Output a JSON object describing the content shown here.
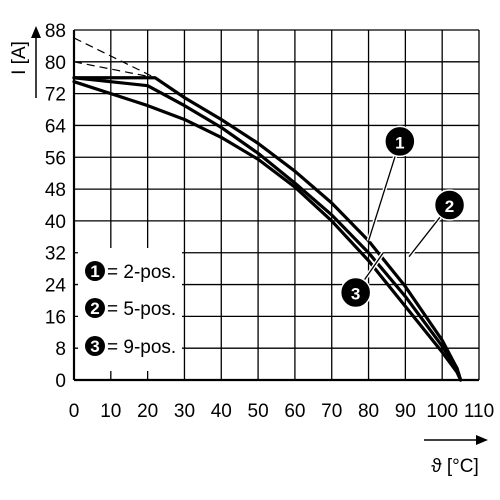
{
  "chart_data": {
    "type": "line",
    "xlabel": "ϑ [°C]",
    "ylabel": "I [A]",
    "xlim": [
      0,
      110
    ],
    "ylim": [
      0,
      88
    ],
    "x_ticks": [
      "0",
      "10",
      "20",
      "30",
      "40",
      "50",
      "60",
      "70",
      "80",
      "90",
      "100",
      "110"
    ],
    "y_ticks": [
      "0",
      "8",
      "16",
      "24",
      "32",
      "40",
      "48",
      "56",
      "64",
      "72",
      "80",
      "88"
    ],
    "grid": true,
    "legend_position": "bottom-left",
    "legend": [
      {
        "id": "1",
        "label": "= 2-pos."
      },
      {
        "id": "2",
        "label": "= 5-pos."
      },
      {
        "id": "3",
        "label": "= 9-pos."
      }
    ],
    "series": [
      {
        "id": "1",
        "x": [
          0,
          22,
          30,
          40,
          50,
          60,
          70,
          80,
          90,
          100,
          104,
          105
        ],
        "y": [
          76,
          76,
          71,
          65.5,
          59.5,
          52.5,
          44.5,
          35,
          23.5,
          10,
          3,
          0
        ]
      },
      {
        "id": "2",
        "x": [
          0,
          20,
          30,
          40,
          50,
          60,
          70,
          80,
          90,
          100,
          104,
          105
        ],
        "y": [
          76,
          74,
          69,
          63.5,
          57,
          49.5,
          41.5,
          32,
          21,
          8.5,
          3,
          0
        ]
      },
      {
        "id": "3",
        "x": [
          0,
          10,
          20,
          30,
          40,
          50,
          60,
          70,
          80,
          90,
          100,
          104,
          105
        ],
        "y": [
          75,
          72,
          69,
          65.5,
          61,
          55.5,
          48.5,
          40,
          30,
          18.5,
          7,
          2,
          0
        ]
      }
    ],
    "extrapolations": [
      {
        "x": [
          0,
          22
        ],
        "y": [
          86,
          76
        ]
      },
      {
        "x": [
          0,
          22
        ],
        "y": [
          80,
          76
        ]
      }
    ],
    "callouts": [
      {
        "id": "1",
        "x": 88.5,
        "y": 60,
        "target_x": 80,
        "target_y": 35
      },
      {
        "id": "2",
        "x": 102,
        "y": 44,
        "target_x": 91,
        "target_y": 31
      },
      {
        "id": "3",
        "x": 76.5,
        "y": 22,
        "target_x": 84,
        "target_y": 32
      }
    ]
  }
}
